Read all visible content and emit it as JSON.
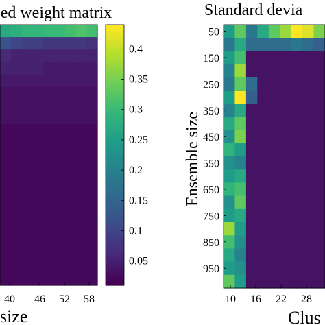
{
  "colors": {
    "colormap": [
      "#440154",
      "#482878",
      "#3e4a89",
      "#31688e",
      "#26828e",
      "#1f9e89",
      "#35b779",
      "#6dcd59",
      "#b4de2c",
      "#fde725"
    ]
  },
  "chart_data": [
    {
      "type": "heatmap",
      "title": "ed weight matrix",
      "xlabel": "size",
      "ylabel": "",
      "x_tick_labels": [
        "40",
        "46",
        "52",
        "58"
      ],
      "colorbar": {
        "range": [
          0.01,
          0.44
        ],
        "ticks": [
          "0.05",
          "0.1",
          "0.15",
          "0.2",
          "0.25",
          "0.3",
          "0.35",
          "0.4"
        ],
        "tick_values": [
          0.05,
          0.1,
          0.15,
          0.2,
          0.25,
          0.3,
          0.35,
          0.4
        ]
      },
      "rows": 21,
      "cols": 9,
      "values": [
        [
          0.27,
          0.28,
          0.29,
          0.29,
          0.3,
          0.3,
          0.31,
          0.32,
          0.31
        ],
        [
          0.12,
          0.1,
          0.09,
          0.09,
          0.08,
          0.08,
          0.08,
          0.08,
          0.07
        ],
        [
          0.06,
          0.05,
          0.05,
          0.05,
          0.05,
          0.05,
          0.05,
          0.05,
          0.05
        ],
        [
          0.05,
          0.05,
          0.05,
          0.05,
          0.04,
          0.04,
          0.04,
          0.04,
          0.04
        ],
        [
          0.04,
          0.04,
          0.04,
          0.04,
          0.04,
          0.04,
          0.04,
          0.04,
          0.04
        ],
        [
          0.03,
          0.03,
          0.03,
          0.03,
          0.03,
          0.03,
          0.03,
          0.03,
          0.03
        ],
        [
          0.03,
          0.03,
          0.03,
          0.03,
          0.03,
          0.03,
          0.03,
          0.03,
          0.03
        ],
        [
          0.03,
          0.03,
          0.03,
          0.03,
          0.03,
          0.03,
          0.03,
          0.03,
          0.03
        ],
        [
          0.02,
          0.02,
          0.02,
          0.02,
          0.02,
          0.02,
          0.02,
          0.02,
          0.02
        ],
        [
          0.02,
          0.02,
          0.02,
          0.02,
          0.02,
          0.02,
          0.02,
          0.02,
          0.02
        ],
        [
          0.02,
          0.02,
          0.02,
          0.02,
          0.02,
          0.02,
          0.02,
          0.02,
          0.02
        ],
        [
          0.02,
          0.02,
          0.02,
          0.02,
          0.02,
          0.02,
          0.02,
          0.02,
          0.02
        ],
        [
          0.02,
          0.02,
          0.02,
          0.02,
          0.02,
          0.02,
          0.02,
          0.02,
          0.02
        ],
        [
          0.02,
          0.02,
          0.02,
          0.02,
          0.02,
          0.02,
          0.02,
          0.02,
          0.02
        ],
        [
          0.02,
          0.02,
          0.02,
          0.02,
          0.02,
          0.02,
          0.02,
          0.02,
          0.02
        ],
        [
          0.02,
          0.02,
          0.02,
          0.02,
          0.02,
          0.02,
          0.02,
          0.02,
          0.02
        ],
        [
          0.02,
          0.02,
          0.02,
          0.02,
          0.02,
          0.02,
          0.02,
          0.02,
          0.02
        ],
        [
          0.02,
          0.02,
          0.02,
          0.02,
          0.02,
          0.02,
          0.02,
          0.02,
          0.02
        ],
        [
          0.02,
          0.02,
          0.02,
          0.02,
          0.02,
          0.02,
          0.02,
          0.02,
          0.02
        ],
        [
          0.02,
          0.02,
          0.02,
          0.02,
          0.02,
          0.02,
          0.02,
          0.02,
          0.02
        ],
        [
          0.02,
          0.02,
          0.02,
          0.02,
          0.02,
          0.02,
          0.02,
          0.02,
          0.02
        ]
      ]
    },
    {
      "type": "heatmap",
      "title": "Standard devia",
      "xlabel": "Clus",
      "ylabel": "Ensemble size",
      "x_tick_labels": [
        "10",
        "16",
        "22",
        "28"
      ],
      "y_tick_labels": [
        "50",
        "150",
        "250",
        "350",
        "450",
        "550",
        "650",
        "750",
        "850",
        "950"
      ],
      "rows": 20,
      "cols": 9,
      "values": [
        [
          0.55,
          0.75,
          0.4,
          0.6,
          0.75,
          0.85,
          1.0,
          0.95,
          0.8
        ],
        [
          0.4,
          0.6,
          0.35,
          0.35,
          0.35,
          0.35,
          0.4,
          0.35,
          0.3
        ],
        [
          0.55,
          0.7,
          0.05,
          0.05,
          0.05,
          0.05,
          0.05,
          0.05,
          0.05
        ],
        [
          0.45,
          0.85,
          0.05,
          0.05,
          0.05,
          0.05,
          0.05,
          0.05,
          0.05
        ],
        [
          0.4,
          0.75,
          0.35,
          0.05,
          0.05,
          0.05,
          0.05,
          0.05,
          0.05
        ],
        [
          0.55,
          1.0,
          0.3,
          0.05,
          0.05,
          0.05,
          0.05,
          0.05,
          0.05
        ],
        [
          0.45,
          0.6,
          0.05,
          0.05,
          0.05,
          0.05,
          0.05,
          0.05,
          0.05
        ],
        [
          0.6,
          0.75,
          0.05,
          0.05,
          0.05,
          0.05,
          0.05,
          0.05,
          0.05
        ],
        [
          0.5,
          0.8,
          0.05,
          0.05,
          0.05,
          0.05,
          0.05,
          0.05,
          0.05
        ],
        [
          0.65,
          0.55,
          0.05,
          0.05,
          0.05,
          0.05,
          0.05,
          0.05,
          0.05
        ],
        [
          0.5,
          0.45,
          0.05,
          0.05,
          0.05,
          0.05,
          0.05,
          0.05,
          0.05
        ],
        [
          0.55,
          0.6,
          0.05,
          0.05,
          0.05,
          0.05,
          0.05,
          0.05,
          0.05
        ],
        [
          0.65,
          0.7,
          0.05,
          0.05,
          0.05,
          0.05,
          0.05,
          0.05,
          0.05
        ],
        [
          0.5,
          0.75,
          0.05,
          0.05,
          0.05,
          0.05,
          0.05,
          0.05,
          0.05
        ],
        [
          0.55,
          0.6,
          0.05,
          0.05,
          0.05,
          0.05,
          0.05,
          0.05,
          0.05
        ],
        [
          0.85,
          0.55,
          0.05,
          0.05,
          0.05,
          0.05,
          0.05,
          0.05,
          0.05
        ],
        [
          0.7,
          0.5,
          0.05,
          0.05,
          0.05,
          0.05,
          0.05,
          0.05,
          0.05
        ],
        [
          0.6,
          0.45,
          0.05,
          0.05,
          0.05,
          0.05,
          0.05,
          0.05,
          0.05
        ],
        [
          0.55,
          0.5,
          0.05,
          0.05,
          0.05,
          0.05,
          0.05,
          0.05,
          0.05
        ],
        [
          0.75,
          0.55,
          0.05,
          0.05,
          0.05,
          0.05,
          0.05,
          0.05,
          0.05
        ]
      ]
    }
  ]
}
